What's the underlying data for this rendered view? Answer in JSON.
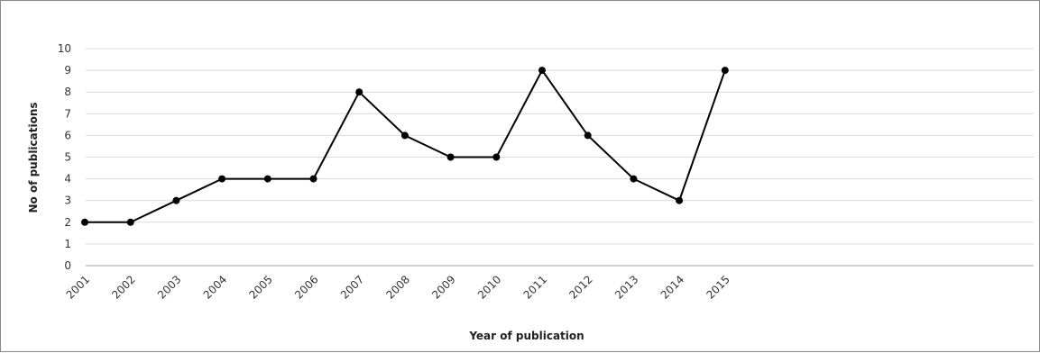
{
  "chart_data": {
    "type": "line",
    "title": "",
    "xlabel": "Year of publication",
    "ylabel": "No of publications",
    "categories": [
      "2001",
      "2002",
      "2003",
      "2004",
      "2005",
      "2006",
      "2007",
      "2008",
      "2009",
      "2010",
      "2011",
      "2012",
      "2013",
      "2014",
      "2015"
    ],
    "values": [
      2,
      2,
      3,
      4,
      4,
      4,
      8,
      6,
      5,
      5,
      9,
      6,
      4,
      3,
      9
    ],
    "ylim": [
      0,
      10
    ],
    "yticks": [
      0,
      1,
      2,
      3,
      4,
      5,
      6,
      7,
      8,
      9,
      10
    ],
    "grid": true,
    "legend": "none",
    "colors": {
      "line": "#000000",
      "grid": "#d9d9d9",
      "axis": "#a6a6a6"
    }
  }
}
